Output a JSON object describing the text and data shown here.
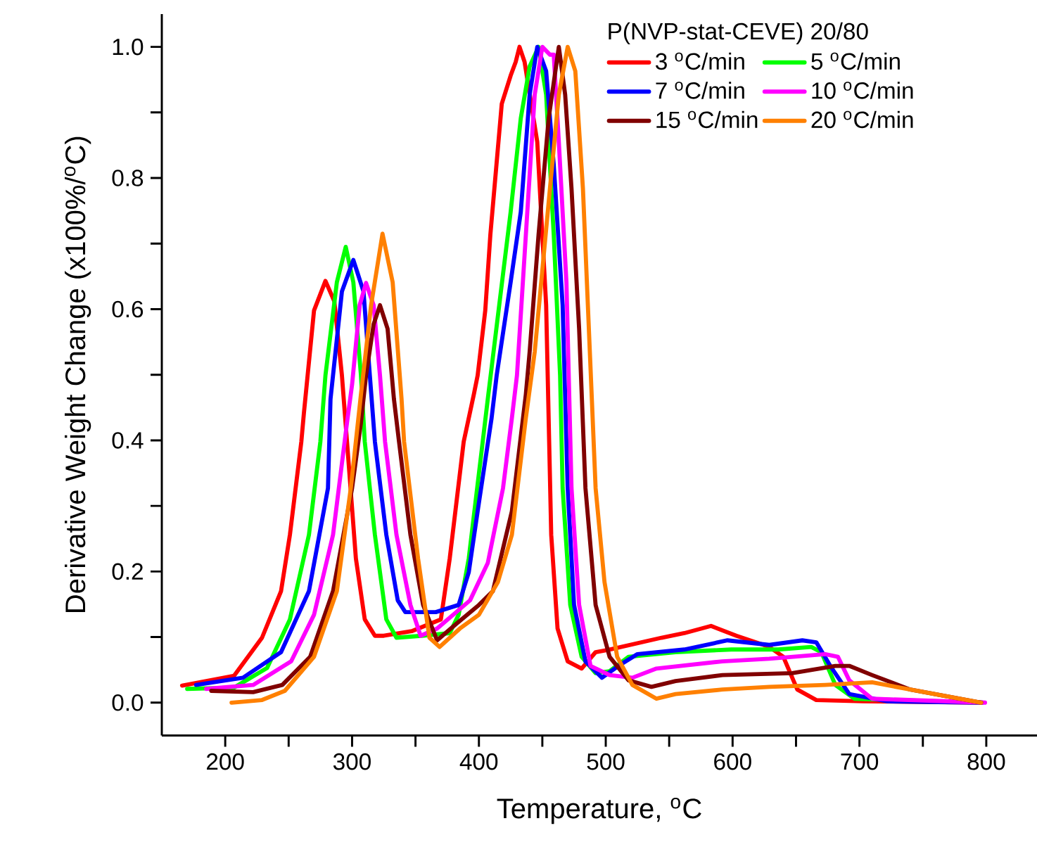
{
  "chart_data": {
    "type": "line",
    "xlabel": "Temperature, $^{o}$C",
    "ylabel": "Derivative Weight Change (x100%/$^{o}$C)",
    "legend_title": "P(NVP-stat-CEVE) 20/80",
    "xlim": [
      150,
      840
    ],
    "ylim": [
      -0.05,
      1.05
    ],
    "xticks": [
      200,
      {
        "value": 250,
        "label": null
      },
      300,
      {
        "value": 350,
        "label": null
      },
      400,
      {
        "value": 450,
        "label": null
      },
      500,
      {
        "value": 550,
        "label": null
      },
      600,
      {
        "value": 650,
        "label": null
      },
      700,
      {
        "value": 750,
        "label": null
      },
      800
    ],
    "yticks": [
      {
        "value": 0,
        "label": "0.0"
      },
      {
        "value": 0.1,
        "label": null
      },
      {
        "value": 0.2,
        "label": "0.2"
      },
      {
        "value": 0.3,
        "label": null
      },
      {
        "value": 0.4,
        "label": "0.4"
      },
      {
        "value": 0.5,
        "label": null
      },
      {
        "value": 0.6,
        "label": "0.6"
      },
      {
        "value": 0.7,
        "label": null
      },
      {
        "value": 0.8,
        "label": "0.8"
      },
      {
        "value": 0.9,
        "label": null
      },
      {
        "value": 1.0,
        "label": "1.0"
      }
    ],
    "legend": "top right",
    "grid": false,
    "line_style": "solid",
    "series": [
      {
        "name": "3 $^{o}$C/min",
        "color": "#ff0000",
        "x": [
          166,
          207,
          229,
          244,
          251,
          260,
          262,
          270,
          279,
          286,
          292,
          296,
          303,
          310,
          318,
          325,
          347,
          370,
          377,
          388,
          396,
          399,
          405,
          409,
          418,
          425,
          429,
          432,
          436,
          446,
          453,
          457,
          462,
          470,
          481,
          492,
          503,
          544,
          562,
          583,
          603,
          629,
          640,
          651,
          666,
          703,
          796
        ],
        "values": [
          0.026,
          0.041,
          0.099,
          0.17,
          0.256,
          0.398,
          0.441,
          0.598,
          0.643,
          0.612,
          0.499,
          0.398,
          0.22,
          0.127,
          0.102,
          0.102,
          0.109,
          0.127,
          0.22,
          0.398,
          0.47,
          0.499,
          0.598,
          0.713,
          0.913,
          0.956,
          0.977,
          1.0,
          0.977,
          0.855,
          0.606,
          0.256,
          0.113,
          0.063,
          0.052,
          0.077,
          0.081,
          0.099,
          0.106,
          0.117,
          0.102,
          0.085,
          0.07,
          0.02,
          0.004,
          0.002,
          0.0
        ]
      },
      {
        "name": "5 $^{o}$C/min",
        "color": "#00ff00",
        "x": [
          170,
          207,
          233,
          251,
          266,
          275,
          279,
          288,
          295,
          301,
          307,
          310,
          318,
          327,
          335,
          355,
          377,
          384,
          392,
          403,
          407,
          416,
          425,
          433,
          440,
          447,
          453,
          459,
          464,
          466,
          472,
          481,
          492,
          503,
          518,
          555,
          599,
          636,
          662,
          670,
          681,
          696,
          740,
          796
        ],
        "values": [
          0.021,
          0.023,
          0.053,
          0.127,
          0.256,
          0.398,
          0.499,
          0.641,
          0.695,
          0.641,
          0.499,
          0.398,
          0.256,
          0.127,
          0.099,
          0.102,
          0.106,
          0.134,
          0.22,
          0.398,
          0.463,
          0.606,
          0.748,
          0.891,
          0.97,
          1.0,
          0.927,
          0.713,
          0.499,
          0.327,
          0.149,
          0.07,
          0.045,
          0.048,
          0.07,
          0.077,
          0.081,
          0.081,
          0.085,
          0.077,
          0.027,
          0.006,
          null,
          0.0
        ]
      },
      {
        "name": "7 $^{o}$C/min",
        "color": "#0000ff",
        "x": [
          177,
          214,
          244,
          266,
          281,
          283,
          292,
          301,
          309,
          314,
          318,
          327,
          336,
          342,
          366,
          384,
          392,
          399,
          410,
          414,
          425,
          433,
          440,
          446,
          453,
          459,
          466,
          470,
          475,
          484,
          497,
          510,
          525,
          562,
          596,
          629,
          655,
          666,
          677,
          692,
          722,
          797
        ],
        "values": [
          0.027,
          0.038,
          0.077,
          0.17,
          0.327,
          0.463,
          0.627,
          0.675,
          0.627,
          0.499,
          0.398,
          0.256,
          0.156,
          0.138,
          0.138,
          0.149,
          0.199,
          0.292,
          0.434,
          0.499,
          0.641,
          0.748,
          0.927,
          1.0,
          0.963,
          0.82,
          0.606,
          0.327,
          0.149,
          0.063,
          0.038,
          0.056,
          0.074,
          0.081,
          0.095,
          0.088,
          0.095,
          0.092,
          0.056,
          0.013,
          0.002,
          0.0
        ]
      },
      {
        "name": "10 $^{o}$C/min",
        "color": "#ff00ff",
        "x": [
          185,
          222,
          252,
          270,
          285,
          296,
          300,
          306,
          311,
          317,
          322,
          326,
          335,
          346,
          354,
          367,
          393,
          407,
          419,
          426,
          430,
          437,
          444,
          450,
          456,
          459,
          463,
          469,
          473,
          479,
          488,
          503,
          521,
          540,
          592,
          629,
          673,
          683,
          692,
          710,
          799
        ],
        "values": [
          0.021,
          0.027,
          0.063,
          0.134,
          0.256,
          0.427,
          0.485,
          0.606,
          0.64,
          0.606,
          0.499,
          0.398,
          0.256,
          0.149,
          0.102,
          0.113,
          0.156,
          0.213,
          0.327,
          0.434,
          0.499,
          0.713,
          0.927,
          1.0,
          0.988,
          0.988,
          0.855,
          0.641,
          0.327,
          0.149,
          0.056,
          0.042,
          0.038,
          0.052,
          0.063,
          0.067,
          0.074,
          0.07,
          0.034,
          0.006,
          0.0
        ]
      },
      {
        "name": "15 $^{o}$C/min",
        "color": "#800000",
        "x": [
          189,
          222,
          245,
          267,
          285,
          300,
          307,
          311,
          317,
          322,
          328,
          333,
          337,
          346,
          356,
          367,
          382,
          400,
          411,
          426,
          437,
          440,
          447,
          455,
          463,
          468,
          473,
          479,
          484,
          492,
          503,
          518,
          536,
          555,
          592,
          647,
          681,
          692,
          710,
          740,
          796
        ],
        "values": [
          0.018,
          0.016,
          0.027,
          0.07,
          0.17,
          0.327,
          0.427,
          0.499,
          0.577,
          0.606,
          0.57,
          0.463,
          0.398,
          0.256,
          0.149,
          0.095,
          0.12,
          0.149,
          0.17,
          0.292,
          0.47,
          0.535,
          0.713,
          0.891,
          1.0,
          0.927,
          0.784,
          0.57,
          0.327,
          0.149,
          0.07,
          0.034,
          0.024,
          0.033,
          0.042,
          0.045,
          0.056,
          0.056,
          0.042,
          0.02,
          0.0
        ]
      },
      {
        "name": "20 $^{o}$C/min",
        "color": "#ff8000",
        "x": [
          205,
          229,
          247,
          270,
          288,
          299,
          307,
          315,
          324,
          332,
          339,
          341,
          352,
          361,
          369,
          385,
          400,
          415,
          426,
          437,
          444,
          456,
          463,
          470,
          476,
          482,
          492,
          499,
          509,
          521,
          540,
          555,
          592,
          629,
          673,
          710,
          740,
          796
        ],
        "values": [
          0.0,
          0.004,
          0.018,
          0.07,
          0.17,
          0.327,
          0.47,
          0.606,
          0.715,
          0.641,
          0.463,
          0.398,
          0.22,
          0.099,
          0.085,
          0.113,
          0.134,
          0.184,
          0.256,
          0.434,
          0.535,
          0.784,
          0.927,
          1.0,
          0.963,
          0.784,
          0.327,
          0.184,
          0.07,
          0.027,
          0.006,
          0.013,
          0.02,
          0.024,
          0.027,
          0.031,
          0.02,
          0.0
        ]
      }
    ]
  }
}
